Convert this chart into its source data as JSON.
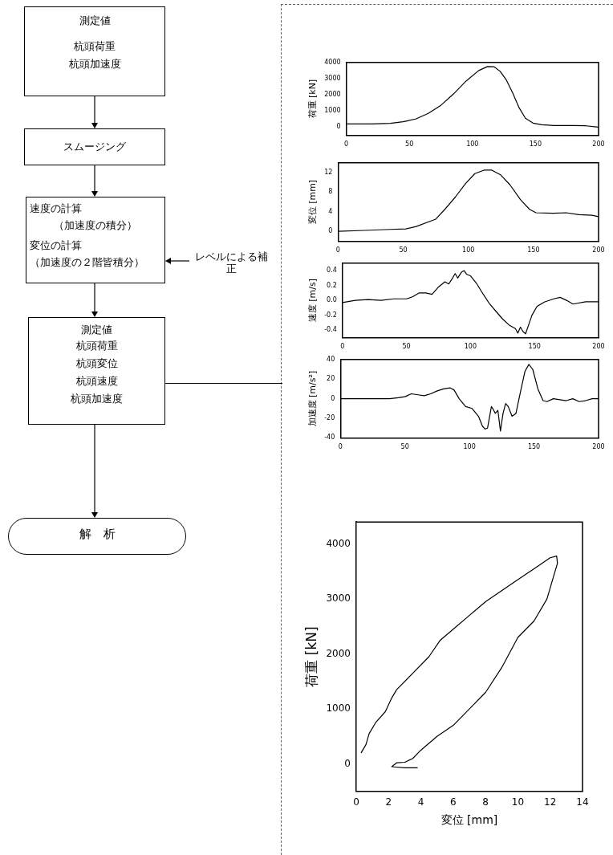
{
  "chart_data": [
    {
      "type": "other",
      "annotations": [
        "測定値",
        "杭頭荷重",
        "杭頭加速度",
        "スムージング",
        "速度の計算",
        "（加速度の積分）",
        "変位の計算",
        "（加速度の２階皆積分）",
        "レベルによる補正",
        "測定値",
        "杭頭荷重",
        "杭頭変位",
        "杭頭速度",
        "杭頭加速度",
        "解　析"
      ]
    },
    {
      "type": "line",
      "ylabel": "荷重 [kN]",
      "xlim": [
        0,
        200
      ],
      "xticks": [
        0,
        50,
        100,
        150,
        200
      ],
      "ylim": [
        -500,
        4000
      ],
      "yticks": [
        0,
        1000,
        2000,
        3000,
        4000
      ],
      "grid": false,
      "legend": false,
      "marker": "none",
      "line_style": "solid",
      "x": [
        0,
        20,
        35,
        45,
        55,
        65,
        75,
        85,
        95,
        105,
        112,
        117,
        122,
        127,
        132,
        137,
        142,
        148,
        155,
        165,
        180,
        190,
        200
      ],
      "series": [
        {
          "color": "#000000",
          "values": [
            200,
            200,
            230,
            330,
            500,
            850,
            1350,
            2050,
            2850,
            3500,
            3750,
            3740,
            3450,
            2900,
            2100,
            1200,
            550,
            250,
            150,
            100,
            100,
            80,
            0
          ]
        }
      ]
    },
    {
      "type": "line",
      "ylabel": "変位 [mm]",
      "xlim": [
        0,
        200
      ],
      "xticks": [
        0,
        50,
        100,
        150,
        200
      ],
      "ylim": [
        -2,
        14
      ],
      "yticks": [
        0,
        4,
        8,
        12
      ],
      "grid": false,
      "legend": false,
      "marker": "none",
      "line_style": "solid",
      "x": [
        0,
        20,
        40,
        52,
        60,
        70,
        75,
        82,
        90,
        98,
        105,
        112,
        118,
        125,
        132,
        140,
        147,
        152,
        165,
        175,
        185,
        195,
        200
      ],
      "series": [
        {
          "color": "#000000",
          "values": [
            0,
            0.2,
            0.4,
            0.5,
            1.0,
            2.0,
            2.5,
            4.5,
            7,
            9.8,
            11.8,
            12.5,
            12.5,
            11.5,
            9.5,
            6.5,
            4.5,
            3.8,
            3.7,
            3.8,
            3.4,
            3.3,
            3.0
          ]
        }
      ]
    },
    {
      "type": "line",
      "ylabel": "速度 [m/s]",
      "xlim": [
        0,
        200
      ],
      "xticks": [
        0,
        50,
        100,
        150,
        200
      ],
      "ylim": [
        -0.5,
        0.5
      ],
      "yticks": [
        0.4,
        0.2,
        {
          "value": 0,
          "label": "0.0"
        },
        -0.2,
        -0.4
      ],
      "grid": false,
      "legend": false,
      "marker": "none",
      "line_style": "solid",
      "x": [
        0,
        10,
        20,
        30,
        40,
        50,
        55,
        60,
        65,
        70,
        75,
        80,
        83,
        86,
        88,
        90,
        93,
        95,
        97,
        100,
        105,
        110,
        115,
        120,
        125,
        130,
        135,
        137,
        139,
        141,
        143,
        146,
        148,
        152,
        158,
        165,
        170,
        175,
        180,
        190,
        200
      ],
      "series": [
        {
          "color": "#000000",
          "values": [
            -0.03,
            0,
            0.01,
            0,
            0.02,
            0.02,
            0.05,
            0.1,
            0.1,
            0.08,
            0.18,
            0.25,
            0.22,
            0.3,
            0.36,
            0.3,
            0.38,
            0.4,
            0.35,
            0.33,
            0.22,
            0.08,
            -0.05,
            -0.15,
            -0.25,
            -0.33,
            -0.38,
            -0.44,
            -0.36,
            -0.42,
            -0.45,
            -0.3,
            -0.2,
            -0.08,
            -0.02,
            0.02,
            0.04,
            0,
            -0.05,
            -0.02,
            -0.02
          ]
        }
      ]
    },
    {
      "type": "line",
      "ylabel": "加速度 [m/s²]",
      "xlim": [
        0,
        200
      ],
      "xticks": [
        0,
        50,
        100,
        150,
        200
      ],
      "ylim": [
        -40,
        40
      ],
      "yticks": [
        40,
        20,
        0,
        -20,
        -40
      ],
      "grid": false,
      "legend": false,
      "marker": "none",
      "line_style": "solid",
      "x": [
        0,
        38,
        45,
        50,
        55,
        60,
        65,
        70,
        75,
        80,
        85,
        88,
        92,
        97,
        102,
        107,
        110,
        112,
        114,
        117,
        118,
        120,
        122,
        124,
        126,
        128,
        130,
        133,
        136,
        140,
        143,
        146,
        149,
        153,
        157,
        160,
        165,
        170,
        175,
        180,
        185,
        190,
        195,
        200
      ],
      "series": [
        {
          "color": "#000000",
          "values": [
            0,
            0,
            1,
            2,
            5,
            4,
            3,
            5,
            8,
            10,
            11,
            9,
            0,
            -8,
            -10,
            -18,
            -28,
            -31,
            -30,
            -8,
            -10,
            -15,
            -12,
            -33,
            -15,
            -5,
            -8,
            -18,
            -15,
            10,
            28,
            35,
            30,
            10,
            -2,
            -3,
            0,
            -1,
            -2,
            0,
            -3,
            -2,
            0,
            0
          ]
        }
      ]
    },
    {
      "type": "line",
      "xlabel": "変位 [mm]",
      "ylabel": "荷重 [kN]",
      "xlim": [
        0,
        14
      ],
      "xticks": [
        0,
        2,
        4,
        6,
        8,
        10,
        12,
        14
      ],
      "ylim": [
        -500,
        4400
      ],
      "yticks": [
        0,
        1000,
        2000,
        3000,
        4000
      ],
      "grid": false,
      "legend": false,
      "marker": "none",
      "line_style": "solid",
      "x": [
        0.3,
        0.6,
        0.8,
        1.2,
        1.8,
        2.2,
        2.5,
        3.5,
        4.5,
        5.2,
        6,
        7,
        8,
        9,
        10,
        11,
        12,
        12.4,
        12.45,
        12.2,
        11.8,
        11,
        10,
        9,
        8,
        7,
        6,
        5,
        4,
        3.5,
        3,
        2.5,
        2.2,
        3,
        3.8
      ],
      "series": [
        {
          "color": "#000000",
          "values": [
            200,
            350,
            550,
            750,
            950,
            1200,
            1350,
            1650,
            1950,
            2250,
            2450,
            2700,
            2950,
            3150,
            3350,
            3550,
            3750,
            3780,
            3650,
            3400,
            3000,
            2600,
            2300,
            1750,
            1300,
            1000,
            700,
            500,
            250,
            100,
            30,
            20,
            -50,
            -70,
            -70
          ]
        }
      ]
    }
  ]
}
